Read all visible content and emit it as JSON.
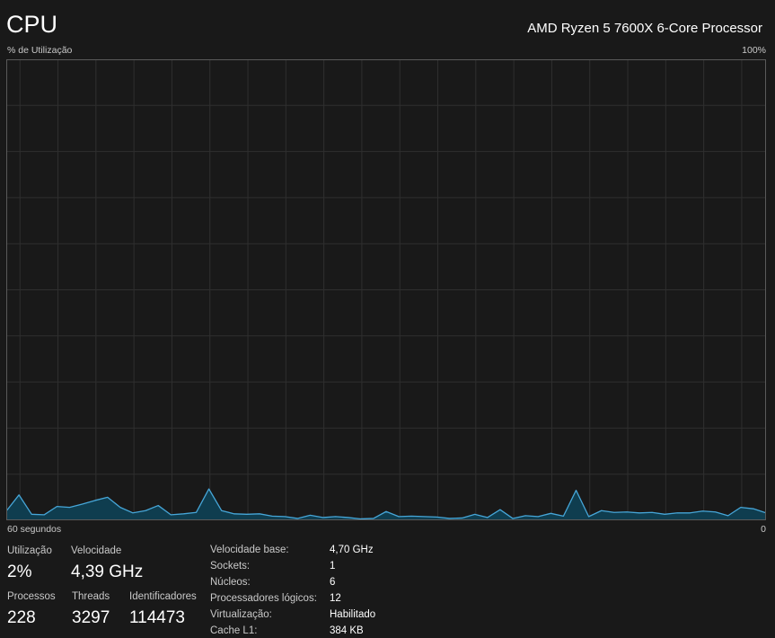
{
  "header": {
    "title": "CPU",
    "model": "AMD Ryzen 5 7600X 6-Core Processor"
  },
  "graph": {
    "y_label": "% de Utilização",
    "y_max_label": "100%",
    "x_label": "60 segundos",
    "x_min_label": "0",
    "line_color": "#46a6d8",
    "fill_color": "#0f3d4f",
    "grid_color": "#2f2f2f",
    "border_color": "#5a5a5a"
  },
  "chart_data": {
    "type": "area",
    "ylim": [
      0,
      100
    ],
    "xlim": [
      60,
      0
    ],
    "grid": true,
    "series": [
      {
        "values": [
          2,
          5.5,
          1.3,
          1.2,
          3,
          2.8,
          3.5,
          4.3,
          5,
          2.8,
          1.6,
          2.1,
          3.2,
          1.2,
          1.4,
          1.7,
          6.8,
          2.1,
          1.4,
          1.3,
          1.4,
          0.9,
          0.8,
          0.4,
          1.1,
          0.6,
          0.8,
          0.6,
          0.3,
          0.4,
          1.9,
          0.8,
          0.9,
          0.8,
          0.7,
          0.4,
          0.5,
          1.3,
          0.6,
          2.3,
          0.4,
          1,
          0.8,
          1.5,
          0.9,
          6.5,
          0.8,
          2.1,
          1.7,
          1.8,
          1.6,
          1.7,
          1.3,
          1.6,
          1.6,
          2,
          1.8,
          1,
          2.8,
          2.5,
          1.6
        ]
      }
    ]
  },
  "stats": {
    "utilization": {
      "label": "Utilização",
      "value": "2%"
    },
    "speed": {
      "label": "Velocidade",
      "value": "4,39 GHz"
    },
    "processes": {
      "label": "Processos",
      "value": "228"
    },
    "threads": {
      "label": "Threads",
      "value": "3297"
    },
    "handles": {
      "label": "Identificadores",
      "value": "114473"
    }
  },
  "info": [
    {
      "key": "Velocidade base:",
      "value": "4,70 GHz"
    },
    {
      "key": "Sockets:",
      "value": "1"
    },
    {
      "key": "Núcleos:",
      "value": "6"
    },
    {
      "key": "Processadores lógicos:",
      "value": "12"
    },
    {
      "key": "Virtualização:",
      "value": "Habilitado"
    },
    {
      "key": "Cache L1:",
      "value": "384 KB"
    }
  ]
}
